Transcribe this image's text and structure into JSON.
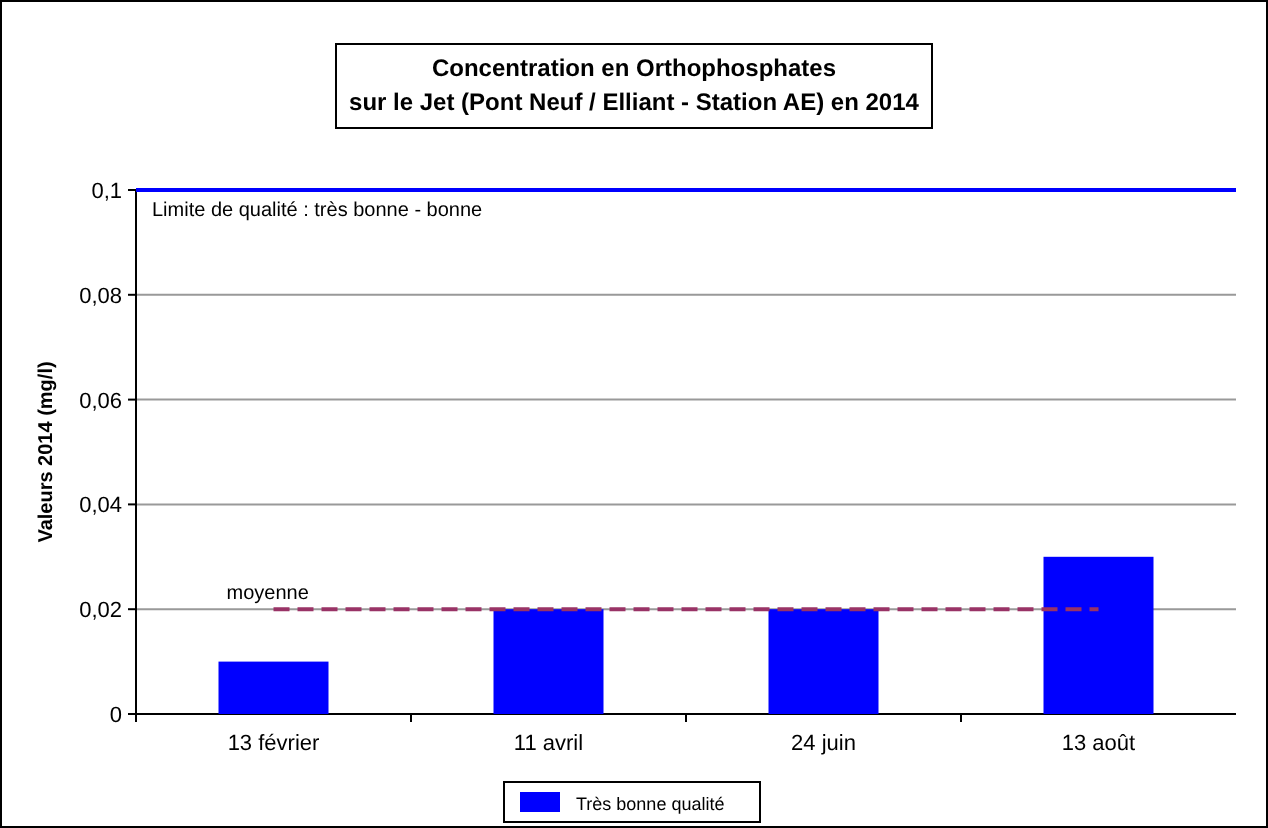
{
  "chart_data": {
    "type": "bar",
    "title": "Concentration en Orthophosphates",
    "subtitle": "sur le Jet (Pont Neuf / Elliant - Station AE) en 2014",
    "ylabel": "Valeurs 2014 (mg/l)",
    "categories": [
      "13 février",
      "11 avril",
      "24 juin",
      "13 août"
    ],
    "series": [
      {
        "name": "Très bonne qualité",
        "color": "#0000ff",
        "values": [
          0.01,
          0.02,
          0.02,
          0.03
        ]
      }
    ],
    "ylim": [
      0,
      0.1
    ],
    "yticks": [
      0,
      {
        "value": 0.02,
        "label": "0,02"
      },
      {
        "value": 0.04,
        "label": "0,04"
      },
      {
        "value": 0.06,
        "label": "0,06"
      },
      {
        "value": 0.08,
        "label": "0,08"
      },
      {
        "value": 0.1,
        "label": "0,1"
      }
    ],
    "grid": "y",
    "legend": "bottom",
    "ref_lines": [
      {
        "axis": "y",
        "value": 0.1,
        "label": "Limite de qualité : très bonne - bonne",
        "color": "#0000ff",
        "line_style": "solid"
      },
      {
        "axis": "y",
        "value": 0.02,
        "label": "moyenne",
        "color": "#993366",
        "line_style": "dashed"
      }
    ]
  }
}
